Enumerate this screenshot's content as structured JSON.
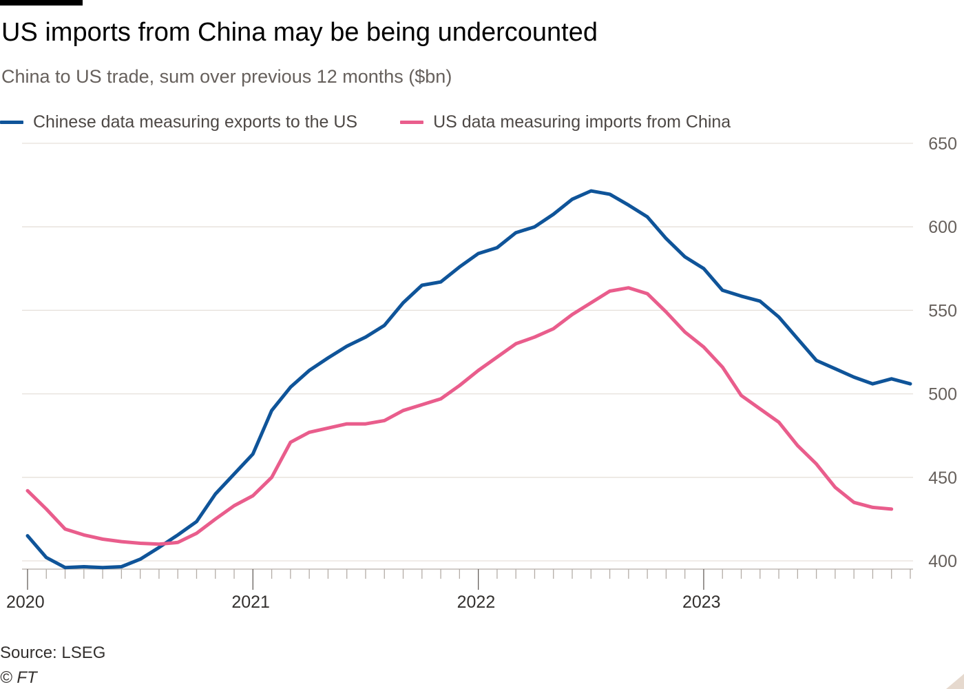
{
  "header": {
    "title": "US imports from China may be being undercounted",
    "subtitle": "China to US trade, sum over previous 12 months ($bn)"
  },
  "legend": [
    {
      "label": "Chinese data measuring exports to the US",
      "color": "#0f5499"
    },
    {
      "label": "US data measuring imports from China",
      "color": "#e95d8c"
    }
  ],
  "footer": {
    "source": "Source: LSEG",
    "credit": "© FT"
  },
  "chart_data": {
    "type": "line",
    "title": "US imports from China may be being undercounted",
    "subtitle": "China to US trade, sum over previous 12 months ($bn)",
    "x_unit": "monthly, Jan 2020 – Dec 2023",
    "x_tick_labels": [
      "2020",
      "2021",
      "2022",
      "2023"
    ],
    "x_tick_positions": [
      0,
      12,
      24,
      36
    ],
    "x_range": [
      0,
      47
    ],
    "ylim": [
      400,
      650
    ],
    "y_ticks": [
      400,
      450,
      500,
      550,
      600,
      650
    ],
    "y_axis_side": "right",
    "grid": true,
    "series": [
      {
        "name": "Chinese data measuring exports to the US",
        "color": "#0f5499",
        "values": [
          415,
          402,
          396,
          396.5,
          396,
          396.5,
          401,
          408,
          415.5,
          423.5,
          440,
          452,
          464,
          490,
          504,
          514,
          521.5,
          528.5,
          534,
          541,
          554.5,
          565,
          567,
          576,
          584,
          587.5,
          596.5,
          600,
          607.5,
          616.5,
          621.5,
          619.5,
          613,
          606,
          593,
          582,
          575,
          562,
          558.5,
          555.5,
          546,
          533,
          520,
          515,
          510,
          506,
          509,
          506
        ]
      },
      {
        "name": "US data measuring imports from China",
        "color": "#e95d8c",
        "values": [
          442,
          431,
          419,
          415.5,
          413,
          411.5,
          410.5,
          410,
          411,
          416.5,
          425,
          433,
          439,
          450,
          471,
          477,
          479.5,
          482,
          482,
          484,
          490,
          493.5,
          497,
          505,
          514,
          522,
          530,
          534,
          539,
          547.5,
          554.5,
          561.5,
          563.5,
          560,
          549,
          537,
          528,
          516,
          499,
          491,
          483,
          469,
          458,
          444,
          435,
          432,
          431
        ]
      }
    ]
  }
}
